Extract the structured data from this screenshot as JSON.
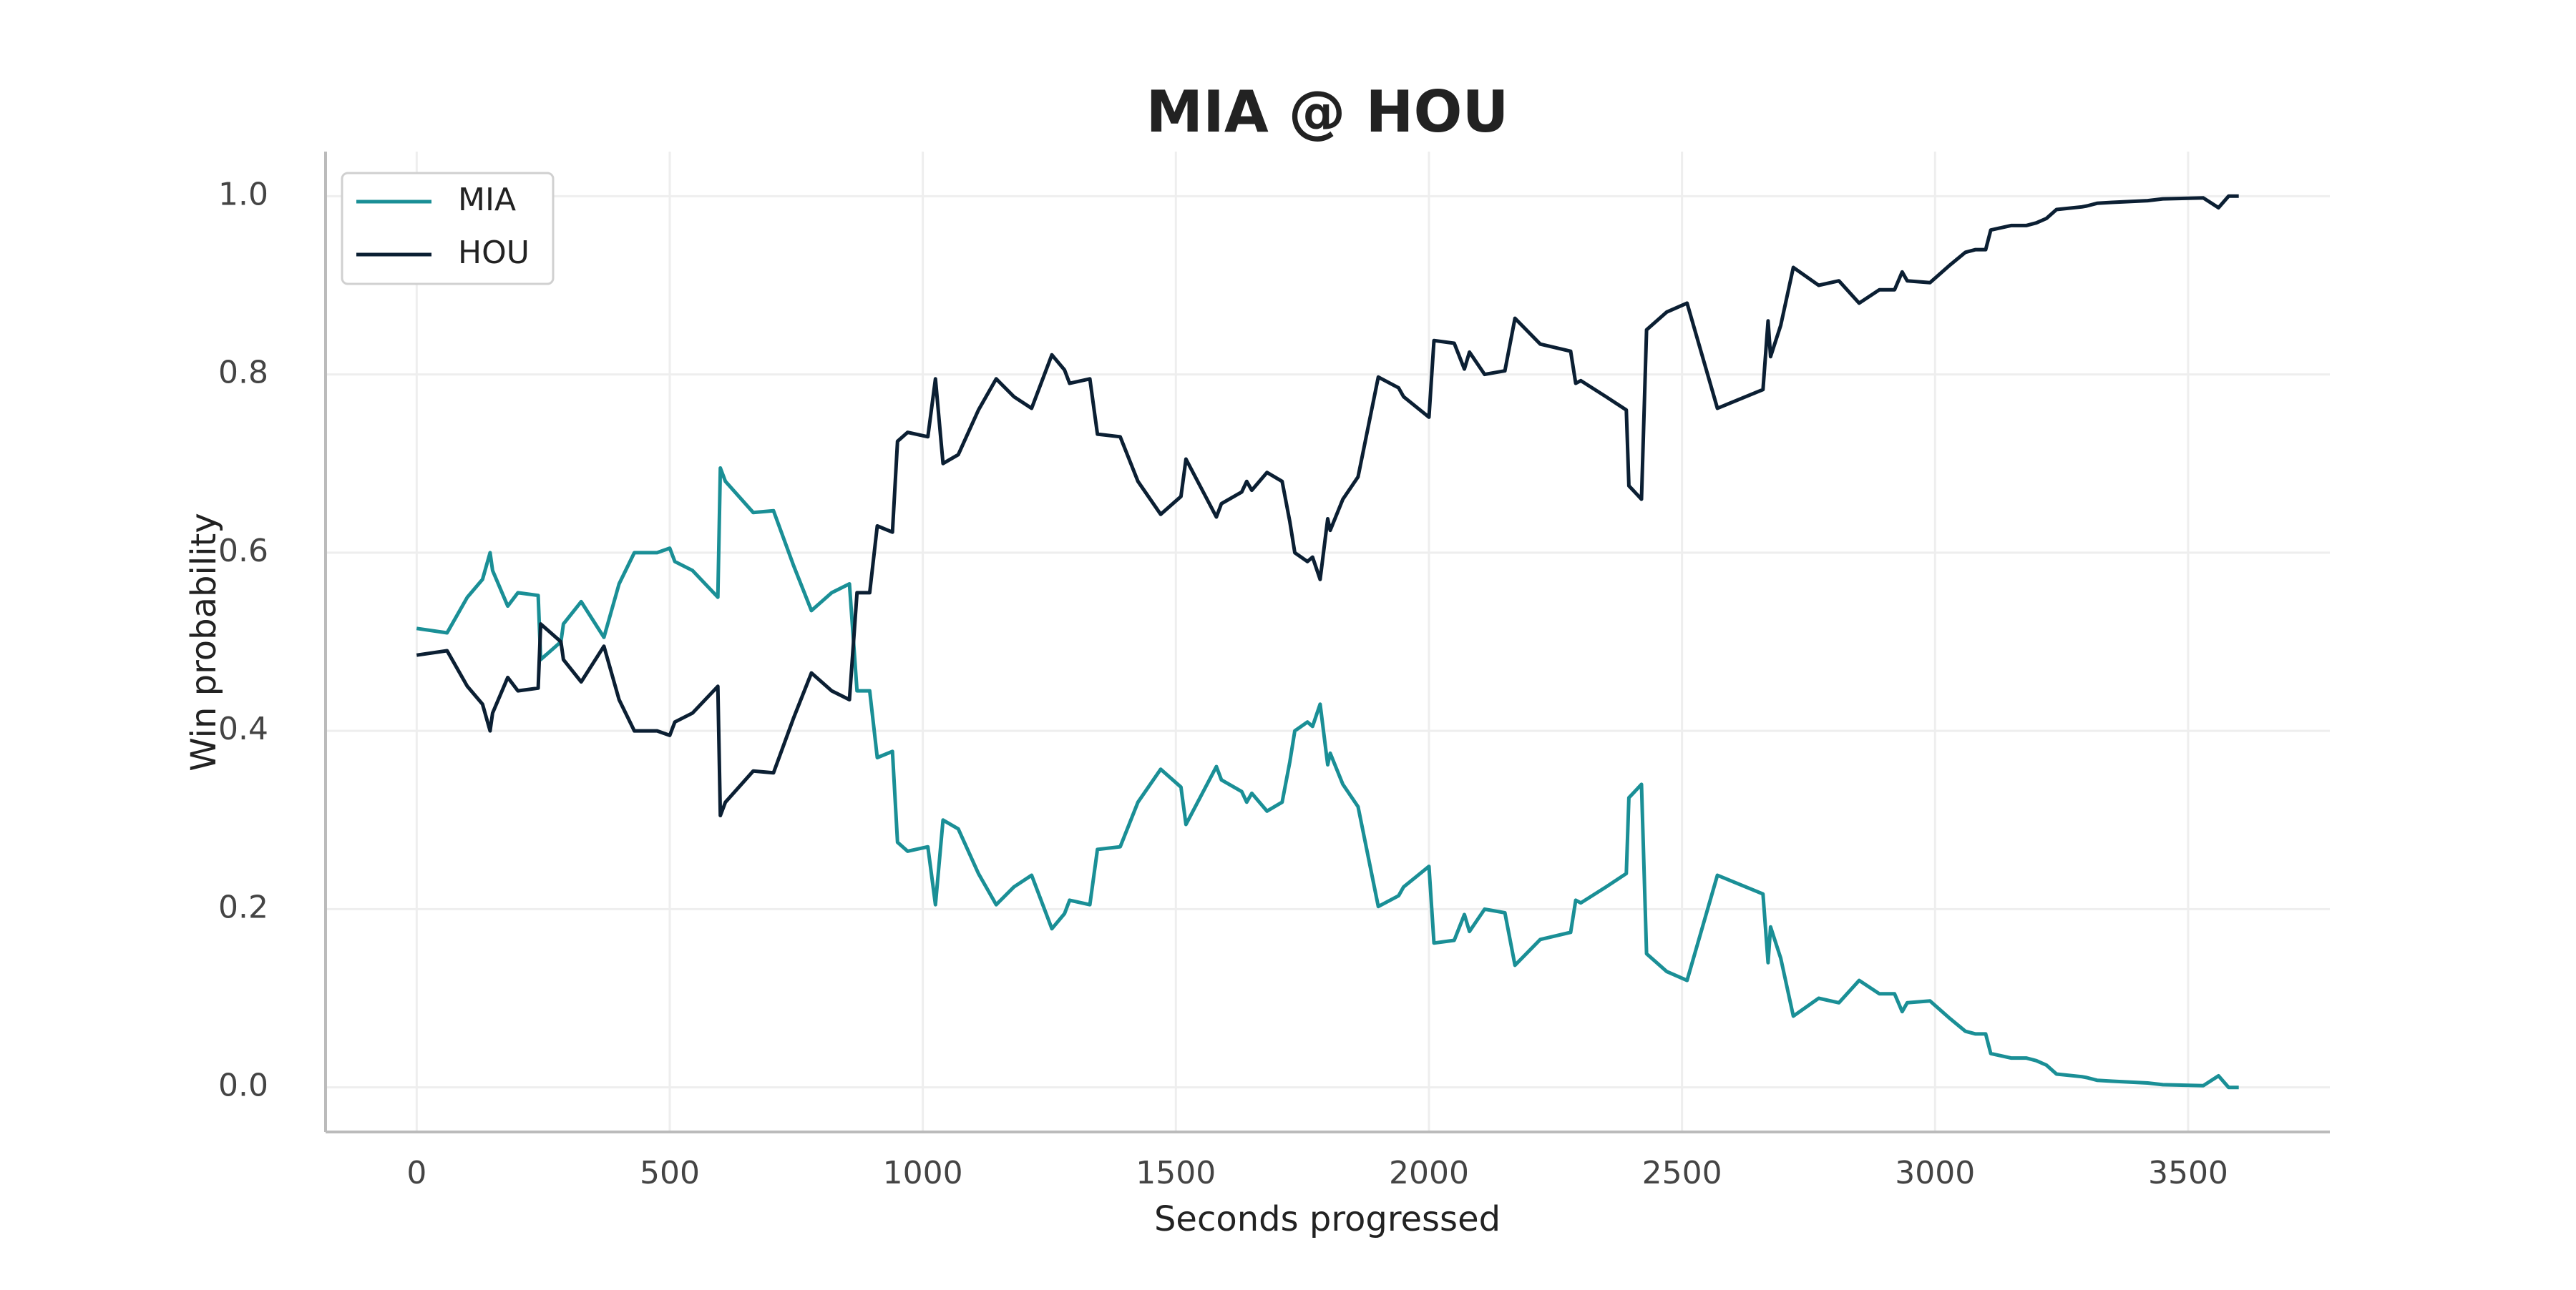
{
  "chart_data": {
    "type": "line",
    "title": "MIA @ HOU",
    "xlabel": "Seconds progressed",
    "ylabel": "Win probability",
    "x": [
      0,
      60,
      100,
      130,
      145,
      150,
      180,
      200,
      240,
      245,
      285,
      290,
      325,
      370,
      400,
      430,
      475,
      500,
      510,
      545,
      595,
      600,
      610,
      665,
      705,
      745,
      780,
      820,
      855,
      870,
      895,
      910,
      940,
      950,
      970,
      1010,
      1025,
      1040,
      1070,
      1110,
      1145,
      1180,
      1215,
      1255,
      1280,
      1290,
      1330,
      1345,
      1390,
      1425,
      1470,
      1510,
      1520,
      1580,
      1590,
      1630,
      1640,
      1650,
      1680,
      1710,
      1725,
      1735,
      1760,
      1770,
      1785,
      1800,
      1805,
      1830,
      1860,
      1900,
      1940,
      1950,
      2000,
      2010,
      2050,
      2070,
      2080,
      2110,
      2150,
      2170,
      2220,
      2280,
      2290,
      2300,
      2350,
      2390,
      2395,
      2420,
      2430,
      2470,
      2510,
      2570,
      2660,
      2670,
      2675,
      2695,
      2720,
      2770,
      2810,
      2850,
      2890,
      2920,
      2935,
      2945,
      2990,
      3030,
      3060,
      3080,
      3100,
      3110,
      3150,
      3180,
      3200,
      3220,
      3240,
      3290,
      3300,
      3320,
      3350,
      3420,
      3450,
      3530,
      3560,
      3580,
      3600
    ],
    "series": [
      {
        "name": "MIA",
        "color": "#1a8f96",
        "values": [
          0.515,
          0.51,
          0.55,
          0.57,
          0.6,
          0.58,
          0.54,
          0.555,
          0.552,
          0.48,
          0.5,
          0.52,
          0.545,
          0.505,
          0.565,
          0.6,
          0.6,
          0.605,
          0.59,
          0.58,
          0.55,
          0.695,
          0.68,
          0.645,
          0.647,
          0.585,
          0.535,
          0.555,
          0.565,
          0.445,
          0.445,
          0.37,
          0.377,
          0.275,
          0.265,
          0.27,
          0.205,
          0.3,
          0.29,
          0.24,
          0.205,
          0.225,
          0.238,
          0.178,
          0.195,
          0.21,
          0.205,
          0.267,
          0.27,
          0.32,
          0.357,
          0.337,
          0.295,
          0.36,
          0.345,
          0.332,
          0.32,
          0.33,
          0.31,
          0.32,
          0.365,
          0.4,
          0.41,
          0.405,
          0.43,
          0.362,
          0.375,
          0.34,
          0.315,
          0.203,
          0.215,
          0.225,
          0.248,
          0.162,
          0.165,
          0.194,
          0.175,
          0.2,
          0.196,
          0.137,
          0.166,
          0.174,
          0.21,
          0.207,
          0.225,
          0.24,
          0.325,
          0.34,
          0.15,
          0.13,
          0.12,
          0.238,
          0.217,
          0.14,
          0.18,
          0.145,
          0.08,
          0.1,
          0.095,
          0.12,
          0.105,
          0.105,
          0.085,
          0.095,
          0.097,
          0.077,
          0.063,
          0.06,
          0.06,
          0.038,
          0.033,
          0.033,
          0.03,
          0.025,
          0.015,
          0.012,
          0.011,
          0.008,
          0.007,
          0.005,
          0.003,
          0.002,
          0.013,
          0,
          0
        ]
      },
      {
        "name": "HOU",
        "color": "#0b1f33",
        "values": [
          0.485,
          0.49,
          0.45,
          0.43,
          0.4,
          0.42,
          0.46,
          0.445,
          0.448,
          0.52,
          0.5,
          0.48,
          0.455,
          0.495,
          0.435,
          0.4,
          0.4,
          0.395,
          0.41,
          0.42,
          0.45,
          0.305,
          0.32,
          0.355,
          0.353,
          0.415,
          0.465,
          0.445,
          0.435,
          0.555,
          0.555,
          0.63,
          0.623,
          0.725,
          0.735,
          0.73,
          0.795,
          0.7,
          0.71,
          0.76,
          0.795,
          0.775,
          0.762,
          0.822,
          0.805,
          0.79,
          0.795,
          0.733,
          0.73,
          0.68,
          0.643,
          0.663,
          0.705,
          0.64,
          0.655,
          0.668,
          0.68,
          0.67,
          0.69,
          0.68,
          0.635,
          0.6,
          0.59,
          0.595,
          0.57,
          0.638,
          0.625,
          0.66,
          0.685,
          0.797,
          0.785,
          0.775,
          0.752,
          0.838,
          0.835,
          0.806,
          0.825,
          0.8,
          0.804,
          0.863,
          0.834,
          0.826,
          0.79,
          0.793,
          0.775,
          0.76,
          0.675,
          0.66,
          0.85,
          0.87,
          0.88,
          0.762,
          0.783,
          0.86,
          0.82,
          0.855,
          0.92,
          0.9,
          0.905,
          0.88,
          0.895,
          0.895,
          0.915,
          0.905,
          0.903,
          0.923,
          0.937,
          0.94,
          0.94,
          0.962,
          0.967,
          0.967,
          0.97,
          0.975,
          0.985,
          0.988,
          0.989,
          0.992,
          0.993,
          0.995,
          0.997,
          0.998,
          0.987,
          1,
          1
        ]
      }
    ],
    "xlim": [
      -180,
      3780
    ],
    "xticks": [
      0,
      500,
      1000,
      1500,
      2000,
      2500,
      3000,
      3500
    ],
    "ylim": [
      -0.05,
      1.05
    ],
    "yticks": [
      {
        "value": 0,
        "label": "0.0"
      },
      0.2,
      0.4,
      0.6,
      0.8,
      {
        "value": 1,
        "label": "1.0"
      }
    ],
    "grid": true,
    "legend": "upper left"
  }
}
